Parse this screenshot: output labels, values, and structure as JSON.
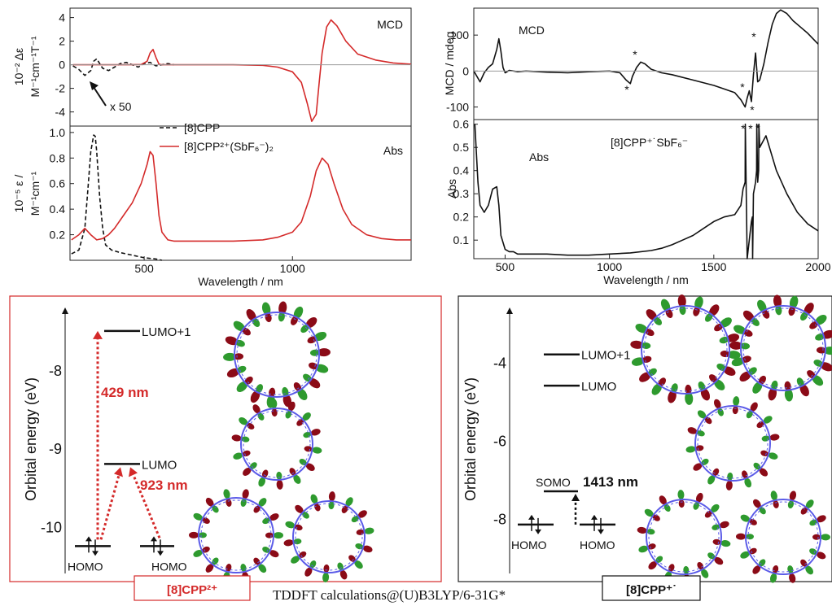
{
  "colors": {
    "red": "#d42a2a",
    "black": "#111111",
    "orb_red": "#8b0b17",
    "orb_green": "#2e9a2e",
    "ring_blue": "#5b5be8"
  },
  "chart_data": [
    {
      "id": "tl_mcd",
      "type": "line",
      "title": "MCD",
      "ylabel": "10⁻² ΔεM / M⁻¹cm⁻¹T⁻¹",
      "xlim": [
        250,
        1400
      ],
      "ylim": [
        -5.2,
        4.8
      ],
      "yticks": [
        {
          "v": 4,
          "label": "4"
        },
        {
          "v": 2,
          "label": "2"
        },
        {
          "v": 0,
          "label": "0"
        },
        {
          "v": -2,
          "label": "-2"
        },
        {
          "v": -4,
          "label": "-4"
        }
      ],
      "annotations": [
        "x 50"
      ],
      "series": [
        {
          "name": "[8]CPP",
          "style": "dash",
          "color": "#111111",
          "x": [
            260,
            280,
            300,
            320,
            330,
            340,
            350,
            360,
            380,
            400,
            420,
            440,
            460,
            480,
            500,
            520,
            540,
            560,
            580,
            600
          ],
          "y": [
            -0.1,
            -0.4,
            -0.9,
            -0.5,
            0.3,
            0.5,
            0.1,
            -0.3,
            -0.5,
            -0.2,
            0.1,
            0.2,
            0.0,
            -0.2,
            0.1,
            0.2,
            -0.1,
            0.0,
            0.1,
            0.0
          ]
        },
        {
          "name": "[8]CPP²⁺(SbF₆⁻)₂",
          "style": "solid",
          "color": "#d42a2a",
          "x": [
            260,
            300,
            350,
            400,
            450,
            490,
            510,
            520,
            530,
            540,
            550,
            560,
            600,
            700,
            800,
            900,
            950,
            1000,
            1030,
            1050,
            1065,
            1080,
            1090,
            1100,
            1115,
            1130,
            1150,
            1180,
            1220,
            1280,
            1340,
            1400
          ],
          "y": [
            0,
            0,
            0,
            0,
            0,
            0.02,
            0.3,
            1.0,
            1.3,
            0.6,
            0.05,
            0,
            0,
            0,
            0,
            -0.05,
            -0.2,
            -0.6,
            -1.5,
            -3.3,
            -4.8,
            -4.2,
            -1.5,
            1.0,
            3.2,
            3.8,
            3.3,
            2.0,
            0.9,
            0.4,
            0.15,
            0.05
          ]
        }
      ]
    },
    {
      "id": "tl_abs",
      "type": "line",
      "title": "Abs",
      "xlabel": "Wavelength / nm",
      "ylabel": "10⁻⁵ ε / M⁻¹cm⁻¹",
      "xlim": [
        250,
        1400
      ],
      "ylim": [
        0,
        1.05
      ],
      "xticks": [
        {
          "v": 500,
          "label": "500"
        },
        {
          "v": 1000,
          "label": "1000"
        }
      ],
      "yticks": [
        {
          "v": 1.0,
          "label": "1.0"
        },
        {
          "v": 0.8,
          "label": "0.8"
        },
        {
          "v": 0.6,
          "label": "0.6"
        },
        {
          "v": 0.4,
          "label": "0.4"
        },
        {
          "v": 0.2,
          "label": "0.2"
        }
      ],
      "series": [
        {
          "name": "[8]CPP",
          "style": "dash",
          "color": "#111111",
          "x": [
            255,
            280,
            300,
            310,
            320,
            330,
            335,
            340,
            350,
            360,
            370,
            390,
            420,
            460,
            500,
            540,
            560
          ],
          "y": [
            0.05,
            0.08,
            0.25,
            0.55,
            0.85,
            0.98,
            0.97,
            0.85,
            0.5,
            0.25,
            0.12,
            0.08,
            0.06,
            0.04,
            0.02,
            0.01,
            0.0
          ]
        },
        {
          "name": "[8]CPP²⁺(SbF₆⁻)₂",
          "style": "solid",
          "color": "#d42a2a",
          "x": [
            255,
            280,
            300,
            320,
            340,
            360,
            380,
            400,
            430,
            460,
            490,
            510,
            520,
            530,
            540,
            550,
            560,
            580,
            600,
            650,
            700,
            800,
            900,
            950,
            1000,
            1030,
            1060,
            1080,
            1100,
            1120,
            1140,
            1170,
            1200,
            1250,
            1300,
            1350,
            1400
          ],
          "y": [
            0.16,
            0.2,
            0.25,
            0.2,
            0.16,
            0.17,
            0.2,
            0.25,
            0.35,
            0.45,
            0.6,
            0.75,
            0.85,
            0.82,
            0.6,
            0.35,
            0.22,
            0.16,
            0.15,
            0.15,
            0.15,
            0.15,
            0.16,
            0.18,
            0.22,
            0.3,
            0.5,
            0.7,
            0.8,
            0.75,
            0.6,
            0.4,
            0.28,
            0.2,
            0.17,
            0.16,
            0.16
          ]
        }
      ]
    },
    {
      "id": "tr_mcd",
      "type": "line",
      "title": "MCD",
      "ylabel": "MCD / mdeg",
      "xlim": [
        350,
        2000
      ],
      "ylim": [
        -135,
        175
      ],
      "yticks": [
        {
          "v": 100,
          "label": "100"
        },
        {
          "v": 0,
          "label": "0"
        },
        {
          "v": -100,
          "label": "-100"
        }
      ],
      "series": [
        {
          "name": "[8]CPP⁺˙SbF₆⁻",
          "style": "solid",
          "color": "#111111",
          "x": [
            350,
            380,
            400,
            420,
            440,
            460,
            470,
            480,
            490,
            500,
            520,
            560,
            600,
            700,
            800,
            900,
            1000,
            1050,
            1080,
            1100,
            1110,
            1130,
            1150,
            1170,
            1200,
            1250,
            1300,
            1400,
            1500,
            1550,
            1600,
            1630,
            1650,
            1660,
            1670,
            1680,
            1690,
            1700,
            1710,
            1720,
            1740,
            1760,
            1780,
            1800,
            1820,
            1850,
            1880,
            1920,
            1950,
            2000
          ],
          "y": [
            0,
            -30,
            -5,
            10,
            20,
            60,
            90,
            55,
            10,
            -5,
            2,
            -2,
            0,
            -3,
            -5,
            -2,
            0,
            -5,
            -25,
            -35,
            -15,
            10,
            25,
            20,
            5,
            -5,
            -10,
            -25,
            -40,
            -50,
            -60,
            -80,
            -100,
            -75,
            -55,
            -85,
            -10,
            50,
            -30,
            -25,
            20,
            80,
            130,
            160,
            170,
            160,
            140,
            120,
            105,
            75
          ]
        }
      ]
    },
    {
      "id": "tr_abs",
      "type": "line",
      "title": "Abs",
      "xlabel": "Wavelength / nm",
      "ylabel": "Abs",
      "xlim": [
        350,
        2000
      ],
      "ylim": [
        0.02,
        0.62
      ],
      "xticks": [
        {
          "v": 500,
          "label": "500"
        },
        {
          "v": 1000,
          "label": "1000"
        },
        {
          "v": 1500,
          "label": "1500"
        },
        {
          "v": 2000,
          "label": "2000"
        }
      ],
      "yticks": [
        {
          "v": 0.6,
          "label": "0.6"
        },
        {
          "v": 0.5,
          "label": "0.5"
        },
        {
          "v": 0.4,
          "label": "0.4"
        },
        {
          "v": 0.3,
          "label": "0.3"
        },
        {
          "v": 0.2,
          "label": "0.2"
        },
        {
          "v": 0.1,
          "label": "0.1"
        }
      ],
      "annotations": [
        "[8]CPP⁺˙SbF₆⁻"
      ],
      "series": [
        {
          "name": "[8]CPP⁺˙SbF₆⁻",
          "style": "solid",
          "color": "#111111",
          "x": [
            355,
            370,
            380,
            400,
            420,
            440,
            460,
            470,
            480,
            500,
            520,
            540,
            560,
            600,
            700,
            800,
            900,
            1000,
            1100,
            1200,
            1250,
            1300,
            1350,
            1400,
            1450,
            1500,
            1550,
            1600,
            1630,
            1640,
            1650,
            1651,
            1660,
            1670,
            1680,
            1685,
            1686,
            1690,
            1700,
            1705,
            1706,
            1710,
            1715,
            1716,
            1720,
            1750,
            1800,
            1850,
            1900,
            1950,
            2000
          ],
          "y": [
            0.6,
            0.35,
            0.25,
            0.22,
            0.25,
            0.32,
            0.33,
            0.25,
            0.12,
            0.06,
            0.05,
            0.05,
            0.04,
            0.04,
            0.04,
            0.035,
            0.035,
            0.04,
            0.045,
            0.055,
            0.065,
            0.08,
            0.1,
            0.12,
            0.15,
            0.18,
            0.2,
            0.21,
            0.25,
            0.32,
            0.35,
            0.6,
            0.02,
            0.1,
            0.18,
            0.2,
            0.02,
            0.3,
            0.35,
            0.4,
            0.6,
            0.35,
            0.4,
            0.6,
            0.5,
            0.55,
            0.4,
            0.3,
            0.22,
            0.17,
            0.14
          ]
        }
      ]
    },
    {
      "id": "bl_energy",
      "type": "diagram",
      "ylabel": "Orbital energy (eV)",
      "ylim": [
        -10.6,
        -7.2
      ],
      "yticks": [
        {
          "v": -8,
          "label": "-8"
        },
        {
          "v": -9,
          "label": "-9"
        },
        {
          "v": -10,
          "label": "-10"
        }
      ],
      "levels": [
        {
          "label": "LUMO+1",
          "energy": -7.5
        },
        {
          "label": "LUMO",
          "energy": -9.2
        },
        {
          "label": "HOMO",
          "energy": -10.25
        }
      ],
      "transitions": [
        "429 nm",
        "923 nm"
      ],
      "caption": "[8]CPP²⁺"
    },
    {
      "id": "br_energy",
      "type": "diagram",
      "ylabel": "Orbital energy (eV)",
      "ylim": [
        -9.4,
        -2.6
      ],
      "yticks": [
        {
          "v": -4,
          "label": "-4"
        },
        {
          "v": -6,
          "label": "-6"
        },
        {
          "v": -8,
          "label": "-8"
        }
      ],
      "levels": [
        {
          "label": "LUMO+1",
          "energy": -3.8
        },
        {
          "label": "LUMO",
          "energy": -4.6
        },
        {
          "label": "SOMO",
          "energy": -7.3
        },
        {
          "label": "HOMO",
          "energy": -8.15
        }
      ],
      "transitions": [
        "1413 nm"
      ],
      "caption": "[8]CPP⁺˙"
    }
  ],
  "footer": "TDDFT calculations@(U)B3LYP/6-31G*"
}
